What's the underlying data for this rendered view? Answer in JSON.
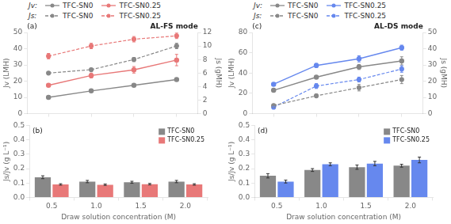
{
  "chart_data": [
    {
      "type": "line",
      "x": [
        0.5,
        1.0,
        1.5,
        2.0
      ],
      "xlim": [
        0.25,
        2.25
      ],
      "xticks": [
        0.5,
        1.0,
        1.5,
        2.0
      ],
      "tick_labels": "y",
      "ylabel": "Jv (LMH)",
      "ylim": [
        0,
        50
      ],
      "yticks": [
        0,
        10,
        20,
        30,
        40,
        50
      ],
      "y2label": "Js (gMH)",
      "y2lim": [
        0,
        12
      ],
      "y2ticks": [
        0,
        2,
        4,
        6,
        8,
        10,
        12
      ],
      "grid": false,
      "legend": "top",
      "annotations": [
        "(a)",
        "AL-FS mode",
        "Jv:",
        "Js:"
      ],
      "series": [
        {
          "name": "TFC-SN0",
          "color": "#888888",
          "values": [
            10.0,
            14.0,
            17.5,
            21.0
          ],
          "errors": [
            0.4,
            0.4,
            0.5,
            0.6
          ],
          "line_style": "solid",
          "marker": "circle"
        },
        {
          "name": "TFC-SN0.25",
          "color": "#e87878",
          "values": [
            17.5,
            23.5,
            27.0,
            33.0
          ],
          "errors": [
            0.8,
            1.5,
            2.0,
            3.5
          ],
          "line_style": "solid",
          "marker": "circle"
        },
        {
          "name": "TFC-SN0",
          "color": "#888888",
          "axis": "y2",
          "values": [
            6.0,
            6.5,
            8.0,
            10.0
          ],
          "errors": [
            0.2,
            0.2,
            0.3,
            0.4
          ],
          "line_style": "dashed",
          "marker": "circle"
        },
        {
          "name": "TFC-SN0.25",
          "color": "#e87878",
          "axis": "y2",
          "values": [
            8.5,
            10.0,
            11.0,
            11.5
          ],
          "errors": [
            0.4,
            0.4,
            0.4,
            0.4
          ],
          "line_style": "dashed",
          "marker": "circle"
        }
      ]
    },
    {
      "type": "bar",
      "x": [
        0.5,
        1.0,
        1.5,
        2.0
      ],
      "xlim": [
        0.25,
        2.25
      ],
      "xticks": [
        0.5,
        {
          "value": 1.0,
          "label": "1.0"
        },
        1.5,
        {
          "value": 2.0,
          "label": "2.0"
        }
      ],
      "xlabel": "Draw solution concentration (M)",
      "ylabel": "Js/Jv (g L⁻¹)",
      "ylim": [
        0.0,
        0.5
      ],
      "yticks": [
        {
          "value": 0.0,
          "label": "0.0"
        },
        0.1,
        0.2,
        0.3,
        0.4,
        0.5
      ],
      "grid": false,
      "legend": "upper right",
      "annotations": [
        "(b)"
      ],
      "series": [
        {
          "name": "TFC-SN0",
          "color": "#888888",
          "values": [
            0.14,
            0.11,
            0.105,
            0.11
          ],
          "errors": [
            0.01,
            0.008,
            0.007,
            0.008
          ]
        },
        {
          "name": "TFC-SN0.25",
          "color": "#e87878",
          "values": [
            0.09,
            0.088,
            0.092,
            0.09
          ],
          "errors": [
            0.005,
            0.005,
            0.005,
            0.005
          ]
        }
      ]
    },
    {
      "type": "line",
      "x": [
        0.5,
        1.0,
        1.5,
        2.0
      ],
      "xlim": [
        0.25,
        2.25
      ],
      "xticks": [
        0.5,
        1.0,
        1.5,
        2.0
      ],
      "tick_labels": "y",
      "ylabel": "Jv (LMH)",
      "ylim": [
        0,
        80
      ],
      "yticks": [
        0,
        20,
        40,
        60,
        80
      ],
      "y2label": "Js (gMH)",
      "y2lim": [
        0,
        50
      ],
      "y2ticks": [
        0,
        10,
        20,
        30,
        40,
        50
      ],
      "grid": false,
      "legend": "top",
      "annotations": [
        "(c)",
        "AL-DS mode",
        "Jv:",
        "Js:"
      ],
      "series": [
        {
          "name": "TFC-SN0",
          "color": "#888888",
          "values": [
            23.0,
            36.0,
            46.0,
            52.0
          ],
          "errors": [
            1.0,
            1.5,
            2.5,
            4.0
          ],
          "line_style": "solid",
          "marker": "circle"
        },
        {
          "name": "TFC-SN0.25",
          "color": "#6688ee",
          "values": [
            29.0,
            47.5,
            54.0,
            65.0
          ],
          "errors": [
            1.5,
            2.0,
            3.0,
            2.5
          ],
          "line_style": "solid",
          "marker": "circle"
        },
        {
          "name": "TFC-SN0",
          "color": "#888888",
          "axis": "y2",
          "values": [
            5.0,
            11.0,
            16.0,
            21.0
          ],
          "errors": [
            0.5,
            1.0,
            2.0,
            2.5
          ],
          "line_style": "dashed",
          "marker": "circle"
        },
        {
          "name": "TFC-SN0.25",
          "color": "#6688ee",
          "axis": "y2",
          "values": [
            4.0,
            17.0,
            21.0,
            27.5
          ],
          "errors": [
            0.5,
            1.5,
            1.5,
            2.0
          ],
          "line_style": "dashed",
          "marker": "circle"
        }
      ]
    },
    {
      "type": "bar",
      "x": [
        0.5,
        1.0,
        1.5,
        2.0
      ],
      "xlim": [
        0.25,
        2.25
      ],
      "xticks": [
        0.5,
        {
          "value": 1.0,
          "label": "1.0"
        },
        1.5,
        {
          "value": 2.0,
          "label": "2.0"
        }
      ],
      "xlabel": "Draw solution concentration (M)",
      "ylabel": "Js/Jv (g L⁻¹)",
      "ylim": [
        0.0,
        0.5
      ],
      "yticks": [
        {
          "value": 0.0,
          "label": "0.0"
        },
        0.1,
        0.2,
        0.3,
        0.4,
        0.5
      ],
      "grid": false,
      "legend": "upper right",
      "annotations": [
        "(d)"
      ],
      "series": [
        {
          "name": "TFC-SN0",
          "color": "#888888",
          "values": [
            0.15,
            0.19,
            0.21,
            0.22
          ],
          "errors": [
            0.015,
            0.01,
            0.015,
            0.01
          ]
        },
        {
          "name": "TFC-SN0.25",
          "color": "#6688ee",
          "values": [
            0.11,
            0.23,
            0.235,
            0.26
          ],
          "errors": [
            0.01,
            0.01,
            0.015,
            0.02
          ]
        }
      ]
    }
  ]
}
